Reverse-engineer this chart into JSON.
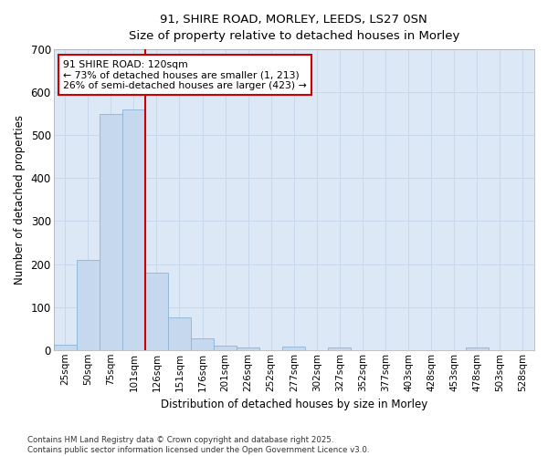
{
  "title_line1": "91, SHIRE ROAD, MORLEY, LEEDS, LS27 0SN",
  "title_line2": "Size of property relative to detached houses in Morley",
  "xlabel": "Distribution of detached houses by size in Morley",
  "ylabel": "Number of detached properties",
  "categories": [
    "25sqm",
    "50sqm",
    "75sqm",
    "101sqm",
    "126sqm",
    "151sqm",
    "176sqm",
    "201sqm",
    "226sqm",
    "252sqm",
    "277sqm",
    "302sqm",
    "327sqm",
    "352sqm",
    "377sqm",
    "403sqm",
    "428sqm",
    "453sqm",
    "478sqm",
    "503sqm",
    "528sqm"
  ],
  "bar_values": [
    13,
    210,
    550,
    560,
    180,
    75,
    28,
    10,
    5,
    0,
    8,
    0,
    5,
    0,
    0,
    0,
    0,
    0,
    5,
    0,
    0
  ],
  "bar_color": "#c5d8ee",
  "bar_edge_color": "#8ab4d8",
  "grid_color": "#c8d8ec",
  "bg_color": "#dce8f5",
  "red_line_color": "#cc0000",
  "annotation_title": "91 SHIRE ROAD: 120sqm",
  "annotation_line1": "← 73% of detached houses are smaller (1, 213)",
  "annotation_line2": "26% of semi-detached houses are larger (423) →",
  "annotation_box_facecolor": "#ffffff",
  "annotation_box_edgecolor": "#cc0000",
  "ylim": [
    0,
    700
  ],
  "yticks": [
    0,
    100,
    200,
    300,
    400,
    500,
    600,
    700
  ],
  "fig_bg": "#ffffff",
  "footnote1": "Contains HM Land Registry data © Crown copyright and database right 2025.",
  "footnote2": "Contains public sector information licensed under the Open Government Licence v3.0."
}
